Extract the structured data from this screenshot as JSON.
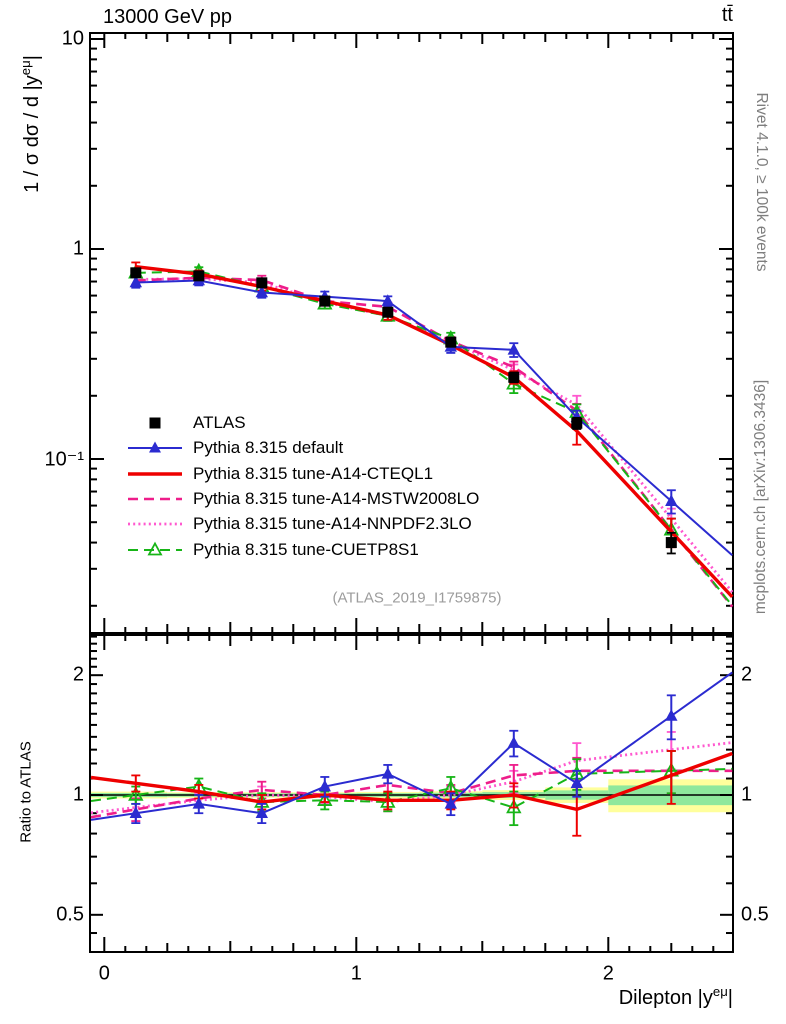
{
  "chart_data": {
    "type": "line",
    "title": "13000 GeV pp",
    "process_label": "tt̄",
    "xlabel": "Dilepton |y^{eμ}|",
    "ylabel": "1 / σ dσ / d |y^{eμ}|",
    "ratio_ylabel": "Ratio to ATLAS",
    "watermark": "(ATLAS_2019_I1759875)",
    "label_parts": {
      "x_main": "Dilepton |y",
      "x_sup": "eμ",
      "x_close": "|",
      "y_main": "1 / σ dσ / d |y",
      "y_sup": "eμ",
      "y_close": "|"
    },
    "axis": {
      "x_range": [
        -0.057,
        2.495
      ],
      "y_scale": "log",
      "y_range": [
        0.0148,
        10.68
      ],
      "ratio_scale": "log",
      "ratio_range": [
        0.403,
        2.525
      ],
      "x_ticks": [
        {
          "v": 0,
          "label": "0"
        },
        {
          "v": 1,
          "label": "1"
        },
        {
          "v": 2,
          "label": "2"
        }
      ],
      "y_ticks": [
        {
          "v": 10,
          "label": "10"
        },
        {
          "v": 1,
          "label": "1"
        },
        {
          "v": 0.1,
          "label": "10⁻¹"
        }
      ],
      "ratio_ticks": [
        {
          "v": 2,
          "label": "2"
        },
        {
          "v": 1,
          "label": "1"
        },
        {
          "v": 0.5,
          "label": "0.5"
        }
      ]
    },
    "x_bin_edges": [
      0,
      0.25,
      0.5,
      0.75,
      1.0,
      1.25,
      1.5,
      1.75,
      2.0,
      2.5
    ],
    "x": [
      0.125,
      0.375,
      0.625,
      0.875,
      1.125,
      1.375,
      1.625,
      1.875,
      2.25
    ],
    "series": [
      {
        "name": "ATLAS",
        "color": "#000000",
        "line": "none",
        "width": 0,
        "marker": "square",
        "values": [
          0.77,
          0.745,
          0.69,
          0.565,
          0.5,
          0.36,
          0.245,
          0.148,
          0.04
        ],
        "errors": [
          0.035,
          0.03,
          0.028,
          0.022,
          0.02,
          0.016,
          0.013,
          0.009,
          0.0045
        ]
      },
      {
        "name": "Pythia 8.315 default",
        "color": "#2b2bd0",
        "line": "solid",
        "width": 2,
        "marker": "triangle",
        "values": [
          0.693,
          0.708,
          0.621,
          0.593,
          0.565,
          0.342,
          0.331,
          0.158,
          0.063
        ],
        "errors": [
          0.039,
          0.037,
          0.035,
          0.034,
          0.03,
          0.022,
          0.025,
          0.012,
          0.008
        ],
        "ratio": [
          0.9,
          0.95,
          0.9,
          1.05,
          1.13,
          0.95,
          1.35,
          1.07,
          1.58
        ],
        "ratio_err": [
          0.05,
          0.05,
          0.05,
          0.06,
          0.06,
          0.06,
          0.1,
          0.08,
          0.2
        ]
      },
      {
        "name": "Pythia 8.315 tune-A14-CTEQL1",
        "color": "#ee0000",
        "line": "solid",
        "width": 3.4,
        "marker": "none",
        "values": [
          0.824,
          0.76,
          0.662,
          0.565,
          0.485,
          0.349,
          0.245,
          0.136,
          0.045
        ],
        "errors": [
          0.039,
          0.03,
          0.028,
          0.023,
          0.025,
          0.018,
          0.017,
          0.019,
          0.007
        ],
        "ratio": [
          1.07,
          1.02,
          0.96,
          1.0,
          0.97,
          0.97,
          1.0,
          0.92,
          1.12
        ],
        "ratio_err": [
          0.05,
          0.04,
          0.04,
          0.04,
          0.05,
          0.05,
          0.07,
          0.13,
          0.17
        ]
      },
      {
        "name": "Pythia 8.315 tune-A14-MSTW2008LO",
        "color": "#ee1d8a",
        "line": "dashed",
        "width": 2.6,
        "marker": "none",
        "values": [
          0.708,
          0.73,
          0.711,
          0.565,
          0.53,
          0.364,
          0.274,
          0.17,
          0.046
        ],
        "errors": [
          0.046,
          0.03,
          0.035,
          0.023,
          0.025,
          0.018,
          0.017,
          0.013,
          0.006
        ],
        "ratio": [
          0.92,
          0.98,
          1.03,
          1.0,
          1.06,
          1.01,
          1.12,
          1.15,
          1.15
        ],
        "ratio_err": [
          0.06,
          0.04,
          0.05,
          0.04,
          0.05,
          0.05,
          0.07,
          0.09,
          0.14
        ]
      },
      {
        "name": "Pythia 8.315 tune-A14-NNPDF2.3LO",
        "color": "#ff58cf",
        "line": "dotted",
        "width": 2.8,
        "marker": "none",
        "values": [
          0.716,
          0.723,
          0.69,
          0.559,
          0.48,
          0.36,
          0.265,
          0.181,
          0.052
        ],
        "errors": [
          0.039,
          0.03,
          0.035,
          0.023,
          0.025,
          0.018,
          0.017,
          0.019,
          0.006
        ],
        "ratio": [
          0.93,
          0.97,
          1.0,
          0.99,
          0.96,
          1.0,
          1.08,
          1.22,
          1.3
        ],
        "ratio_err": [
          0.05,
          0.04,
          0.05,
          0.04,
          0.05,
          0.05,
          0.07,
          0.13,
          0.14
        ]
      },
      {
        "name": "Pythia 8.315 tune-CUETP8S1",
        "color": "#17b517",
        "line": "dashed",
        "width": 2,
        "marker": "triangle-open",
        "values": [
          0.77,
          0.782,
          0.662,
          0.548,
          0.48,
          0.374,
          0.228,
          0.167,
          0.046
        ],
        "errors": [
          0.039,
          0.037,
          0.035,
          0.028,
          0.025,
          0.025,
          0.022,
          0.015,
          0.006
        ],
        "ratio": [
          1.0,
          1.05,
          0.96,
          0.97,
          0.96,
          1.04,
          0.93,
          1.13,
          1.15
        ],
        "ratio_err": [
          0.05,
          0.05,
          0.05,
          0.05,
          0.05,
          0.07,
          0.09,
          0.1,
          0.14
        ]
      }
    ],
    "uncertainty_band": {
      "outer_color": "#ffff9c",
      "inner_color": "#8fe89c",
      "outer_frac": [
        0.02,
        0.016,
        0.016,
        0.016,
        0.018,
        0.022,
        0.028,
        0.045,
        0.095
      ],
      "inner_frac": [
        0.012,
        0.01,
        0.01,
        0.01,
        0.011,
        0.013,
        0.017,
        0.027,
        0.057
      ]
    }
  },
  "side_texts": {
    "rivet": "Rivet 4.1.0, ≥ 100k events",
    "mcplots": "mcplots.cern.ch [arXiv:1306.3436]"
  }
}
